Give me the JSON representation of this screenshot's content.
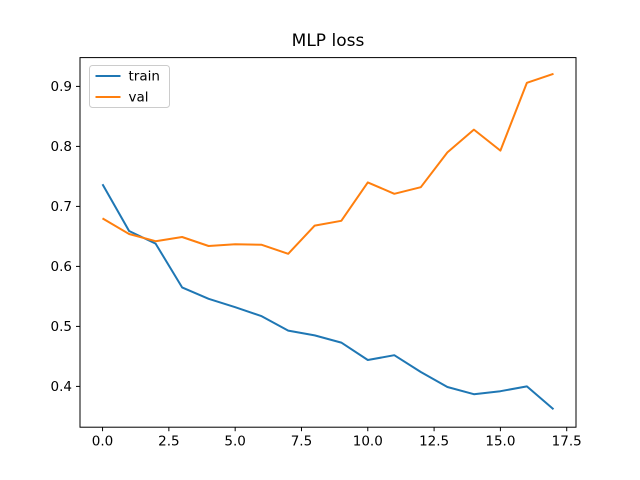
{
  "figure": {
    "background_color": "#ffffff",
    "spine_color": "#000000",
    "tick_color": "#000000"
  },
  "chart_data": {
    "type": "line",
    "title": "MLP loss",
    "xlabel": "",
    "ylabel": "",
    "grid": false,
    "x": [
      0,
      1,
      2,
      3,
      4,
      5,
      6,
      7,
      8,
      9,
      10,
      11,
      12,
      13,
      14,
      15,
      16,
      17
    ],
    "series": [
      {
        "name": "train",
        "color": "#1f77b4",
        "values": [
          0.737,
          0.659,
          0.638,
          0.565,
          0.546,
          0.532,
          0.517,
          0.493,
          0.485,
          0.473,
          0.444,
          0.452,
          0.424,
          0.399,
          0.387,
          0.392,
          0.4,
          0.362
        ]
      },
      {
        "name": "val",
        "color": "#ff7f0e",
        "values": [
          0.68,
          0.654,
          0.642,
          0.649,
          0.634,
          0.637,
          0.636,
          0.621,
          0.668,
          0.676,
          0.74,
          0.721,
          0.732,
          0.79,
          0.828,
          0.793,
          0.906,
          0.921
        ]
      }
    ],
    "xlim": [
      -0.85,
      17.85
    ],
    "ylim": [
      0.332,
      0.948
    ],
    "xticks": [
      "0.0",
      "2.5",
      "5.0",
      "7.5",
      "10.0",
      "12.5",
      "15.0",
      "17.5"
    ],
    "yticks": [
      "0.4",
      "0.5",
      "0.6",
      "0.7",
      "0.8",
      "0.9"
    ],
    "legend": {
      "position": "upper left",
      "border_color": "#cccccc",
      "background": "#ffffff",
      "entries": [
        "train",
        "val"
      ]
    }
  }
}
